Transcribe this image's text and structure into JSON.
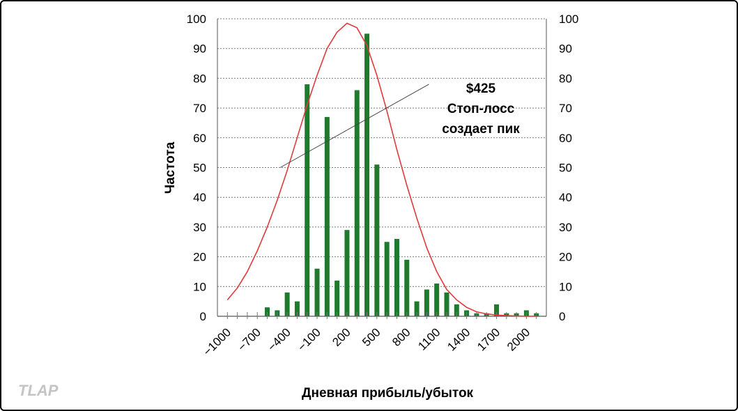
{
  "chart_data": {
    "type": "bar",
    "xlabel": "Дневная прибыль/убыток",
    "ylabel": "Частота",
    "ylim": [
      0,
      100
    ],
    "y_ticks": [
      "0",
      "10",
      "20",
      "30",
      "40",
      "50",
      "60",
      "70",
      "80",
      "90",
      "100"
    ],
    "x_tick_labels": [
      "−1000",
      "−700",
      "−400",
      "−100",
      "200",
      "500",
      "800",
      "1100",
      "1400",
      "1700",
      "2000"
    ],
    "x_tick_values": [
      -1000,
      -700,
      -400,
      -100,
      200,
      500,
      800,
      1100,
      1400,
      1700,
      2000
    ],
    "grid": "horizontal dotted",
    "bar_color": "#1f7a2e",
    "curve_color": "#e03a3a",
    "series": [
      {
        "type": "bar",
        "x": [
          -700,
          -600,
          -500,
          -400,
          -300,
          -200,
          -100,
          0,
          100,
          200,
          300,
          400,
          500,
          600,
          700,
          800,
          900,
          1000,
          1100,
          1200,
          1300,
          1400,
          1500,
          1600,
          1700,
          1800,
          1900,
          2000,
          2100
        ],
        "values": [
          0,
          3,
          2,
          8,
          5,
          78,
          16,
          67,
          12,
          29,
          76,
          95,
          51,
          25,
          26,
          19,
          5,
          9,
          11,
          8,
          4,
          2,
          1,
          1,
          4,
          1,
          1,
          2,
          1
        ]
      },
      {
        "type": "line",
        "x": [
          -1000,
          -900,
          -800,
          -700,
          -600,
          -500,
          -400,
          -300,
          -200,
          -100,
          0,
          100,
          200,
          300,
          400,
          500,
          600,
          700,
          800,
          900,
          1000,
          1100,
          1200,
          1300,
          1400,
          1500,
          1600,
          1700,
          1800,
          1900,
          2000,
          2100
        ],
        "values": [
          5.5,
          9.5,
          15,
          22,
          30,
          39,
          49,
          60,
          71,
          81,
          90,
          95.5,
          98.5,
          97,
          91,
          81,
          69,
          56,
          44,
          33,
          23,
          15,
          9,
          5.5,
          3,
          1.5,
          0.8,
          0.4,
          0.2,
          0.1,
          0,
          0
        ]
      }
    ],
    "annotation": {
      "lines": [
        "$425",
        "Стоп-лосс",
        "создает пик"
      ],
      "pointer_from": {
        "x": -470,
        "y": 50
      },
      "pointer_to": {
        "x": 1022,
        "y": 78
      }
    }
  },
  "watermark": "TLAP"
}
